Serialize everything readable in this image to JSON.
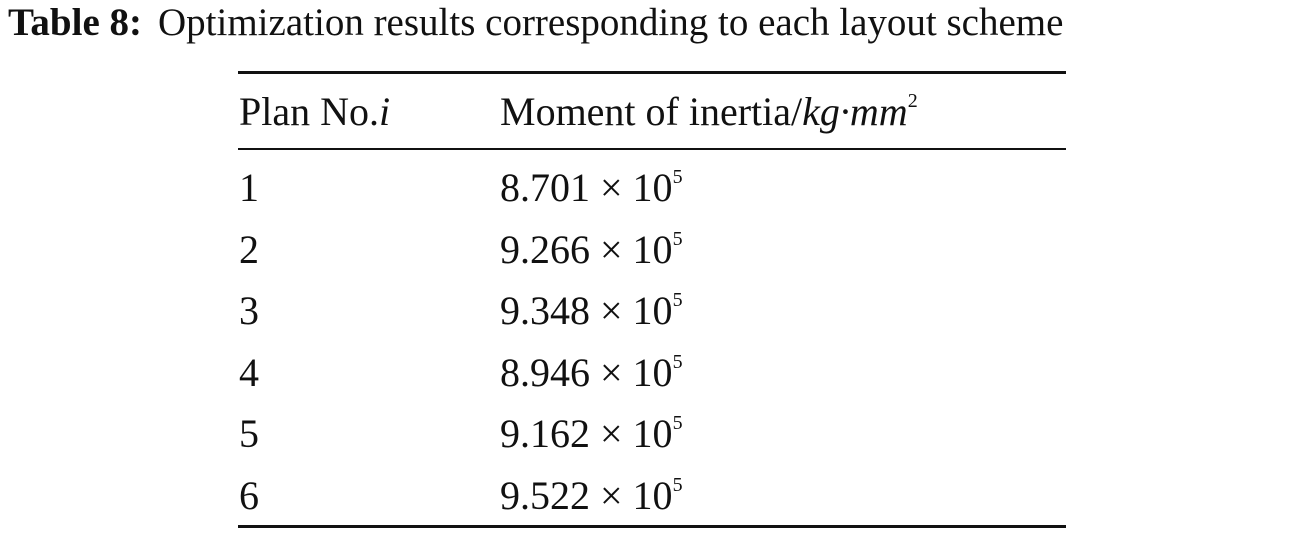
{
  "caption": {
    "label": "Table 8:",
    "text": "Optimization results corresponding to each layout scheme"
  },
  "table": {
    "header": [
      {
        "text": "Plan No.",
        "italic": "i"
      },
      {
        "text": "Moment of inertia/",
        "italic": "kg·mm",
        "superscript": "2"
      }
    ],
    "rows": [
      [
        "1",
        {
          "mantissa": "8.701 × 10",
          "exponent": "5"
        }
      ],
      [
        "2",
        {
          "mantissa": "9.266 × 10",
          "exponent": "5"
        }
      ],
      [
        "3",
        {
          "mantissa": "9.348 × 10",
          "exponent": "5"
        }
      ],
      [
        "4",
        {
          "mantissa": "8.946 × 10",
          "exponent": "5"
        }
      ],
      [
        "5",
        {
          "mantissa": "9.162 × 10",
          "exponent": "5"
        }
      ],
      [
        "6",
        {
          "mantissa": "9.522 × 10",
          "exponent": "5"
        }
      ]
    ]
  }
}
